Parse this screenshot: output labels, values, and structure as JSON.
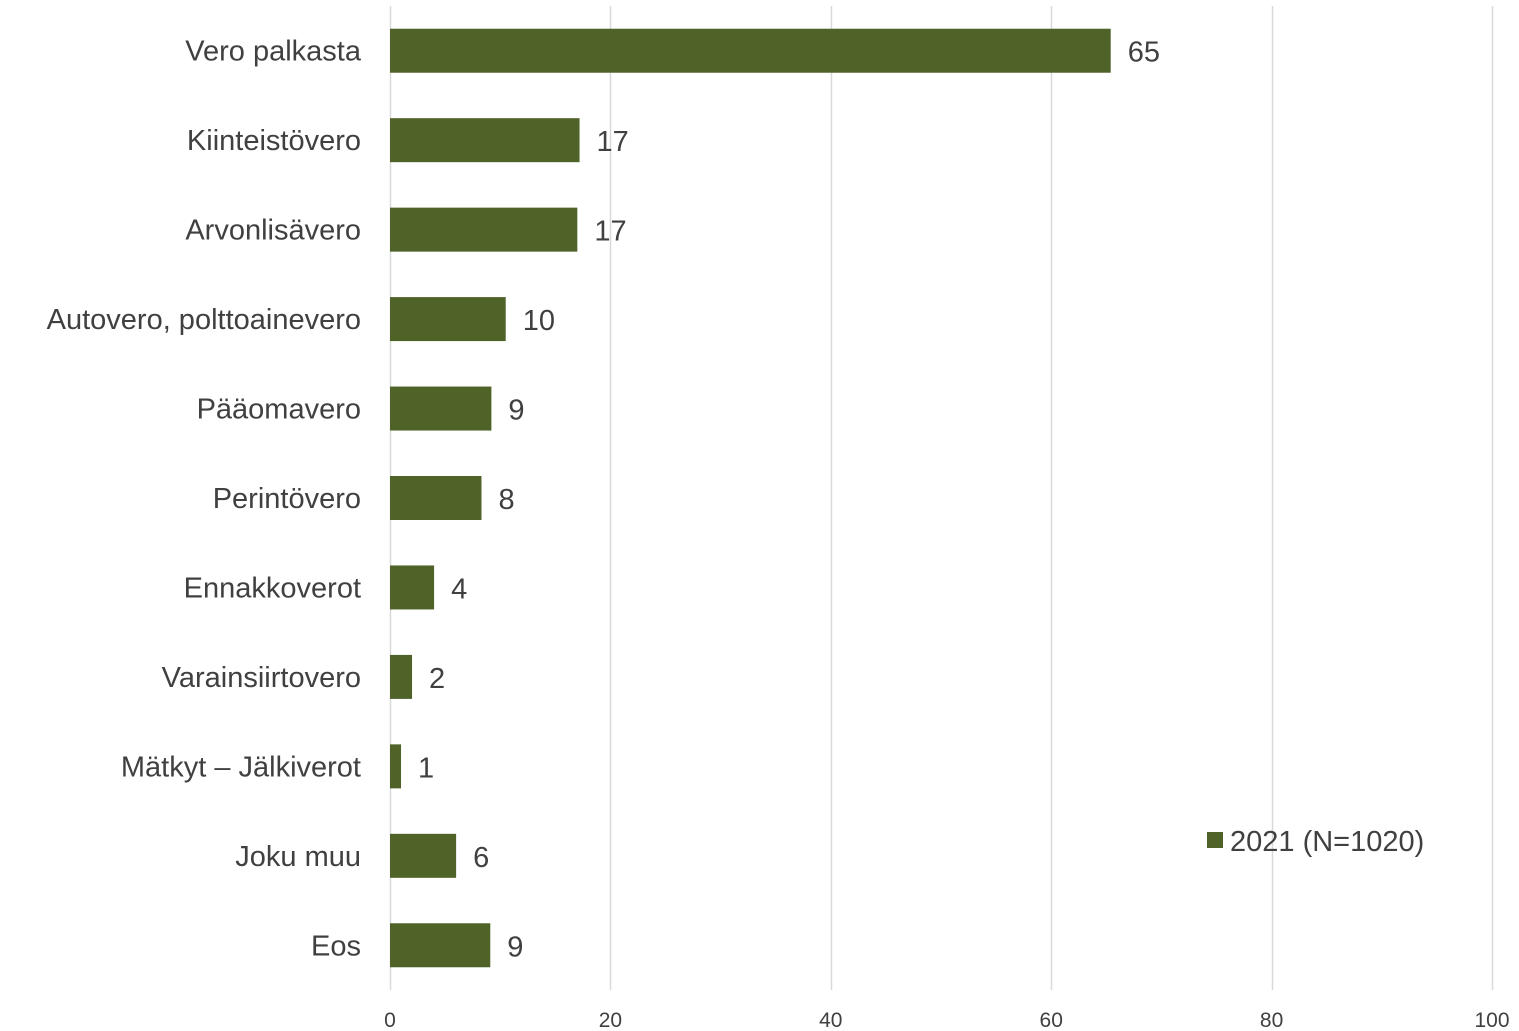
{
  "chart_data": {
    "type": "bar",
    "orientation": "horizontal",
    "categories": [
      "Vero palkasta",
      "Kiinteistövero",
      "Arvonlisävero",
      "Autovero, polttoainevero",
      "Pääomavero",
      "Perintövero",
      "Ennakkoverot",
      "Varainsiirtovero",
      "Mätkyt – Jälkiverot",
      "Joku muu",
      "Eos"
    ],
    "series": [
      {
        "name": "2021 (N=1020)",
        "values": [
          65.4,
          17.2,
          17.0,
          10.5,
          9.2,
          8.3,
          4.0,
          2.0,
          1.0,
          6.0,
          9.1
        ],
        "labels": [
          "65",
          "17",
          "17",
          "10",
          "9",
          "8",
          "4",
          "2",
          "1",
          "6",
          "9"
        ]
      }
    ],
    "xlim": [
      0,
      100
    ],
    "xticks": [
      0,
      20,
      40,
      60,
      80,
      100
    ],
    "grid": true,
    "legend": "right"
  },
  "colors": {
    "bar": "#4f6228",
    "grid": "#d9d9d9",
    "text": "#404040"
  }
}
